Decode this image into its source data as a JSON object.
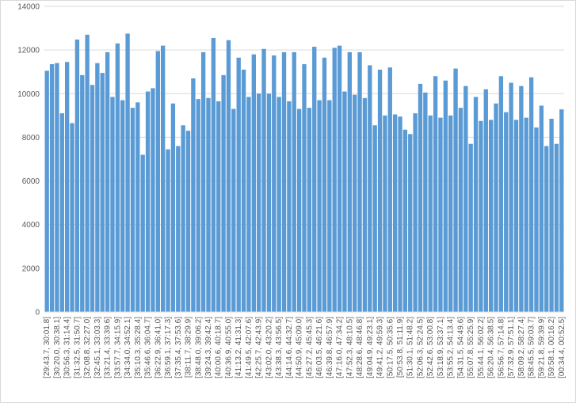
{
  "chart_data": {
    "type": "bar",
    "color": "#5b9bd5",
    "grid": true,
    "ylim": [
      0,
      14000
    ],
    "yticks": [
      0,
      2000,
      4000,
      6000,
      8000,
      10000,
      12000,
      14000
    ],
    "categories": [
      "[29:43.7, 30:01.8]",
      null,
      "[30:20.0, 30:38.1]",
      null,
      "[30:56.3, 31:14.4]",
      null,
      "[31:32.5, 31:50.7]",
      null,
      "[32:08.8, 32:27.0]",
      null,
      "[32:45.1, 33:03.3]",
      null,
      "[33:21.4, 33:39.6]",
      null,
      "[33:57.7, 34:15.9]",
      null,
      "[34:34.0, 34:52.1]",
      null,
      "[35:10.3, 35:28.4]",
      null,
      "[35:46.6, 36:04.7]",
      null,
      "[36:22.9, 36:41.0]",
      null,
      "[36:59.1, 37:17.3]",
      null,
      "[37:35.4, 37:53.6]",
      null,
      "[38:11.7, 38:29.9]",
      null,
      "[38:48.0, 39:06.2]",
      null,
      "[39:24.3, 39:42.4]",
      null,
      "[40:00.6, 40:18.7]",
      null,
      "[40:36.9, 40:55.0]",
      null,
      "[41:13.2, 41:31.3]",
      null,
      "[41:49.5, 42:07.6]",
      null,
      "[42:25.7, 42:43.9]",
      null,
      "[43:02.0, 43:20.2]",
      null,
      "[43:38.3, 43:56.5]",
      null,
      "[44:14.6, 44:32.7]",
      null,
      "[44:50.9, 45:09.0]",
      null,
      "[45:27.2, 45:45.3]",
      null,
      "[46:03.5, 46:21.6]",
      null,
      "[46:39.8, 46:57.9]",
      null,
      "[47:16.0, 47:34.2]",
      null,
      "[47:52.3, 48:10.5]",
      null,
      "[48:28.6, 48:46.8]",
      null,
      "[49:04.9, 49:23.1]",
      null,
      "[49:41.2, 49:59.3]",
      null,
      "[50:17.5, 50:35.6]",
      null,
      "[50:53.8, 51:11.9]",
      null,
      "[51:30.1, 51:48.2]",
      null,
      "[52:06.3, 52:24.5]",
      null,
      "[52:42.6, 53:00.8]",
      null,
      "[53:18.9, 53:37.1]",
      null,
      "[53:55.2, 54:13.4]",
      null,
      "[54:31.5, 54:49.6]",
      null,
      "[55:07.8, 55:25.9]",
      null,
      "[55:44.1, 56:02.2]",
      null,
      "[56:20.4, 56:38.5]",
      null,
      "[56:56.7, 57:14.8]",
      null,
      "[57:32.9, 57:51.1]",
      null,
      "[58:09.2, 58:27.4]",
      null,
      "[58:45.5, 59:03.7]",
      null,
      "[59:21.8, 59:39.9]",
      null,
      "[59:58.1, 00:16.2]",
      null,
      "[00:34.4, 00:52.5]"
    ],
    "values": [
      11050,
      11350,
      11400,
      9100,
      11450,
      8650,
      12480,
      10850,
      12700,
      10400,
      11400,
      10950,
      11900,
      9850,
      12300,
      9700,
      12750,
      9350,
      9600,
      7200,
      10100,
      10250,
      11950,
      12200,
      7450,
      9550,
      7600,
      8550,
      8300,
      10700,
      9750,
      11900,
      9800,
      12550,
      9650,
      10850,
      12450,
      9300,
      11650,
      11100,
      9850,
      11800,
      10000,
      12050,
      10000,
      11750,
      9850,
      11900,
      9650,
      11900,
      9300,
      11350,
      9350,
      12150,
      9700,
      11650,
      9700,
      12100,
      12200,
      10100,
      11900,
      9950,
      11900,
      9800,
      11300,
      8550,
      11100,
      9000,
      11200,
      9050,
      8950,
      8350,
      8150,
      9100,
      10450,
      10050,
      9000,
      10800,
      8900,
      10600,
      9000,
      11150,
      9350,
      10350,
      7700,
      9850,
      8750,
      10200,
      8800,
      9550,
      10800,
      9150,
      10500,
      8800,
      10350,
      8900,
      10750,
      8450,
      9450,
      7600,
      8850,
      7700,
      9280
    ]
  }
}
